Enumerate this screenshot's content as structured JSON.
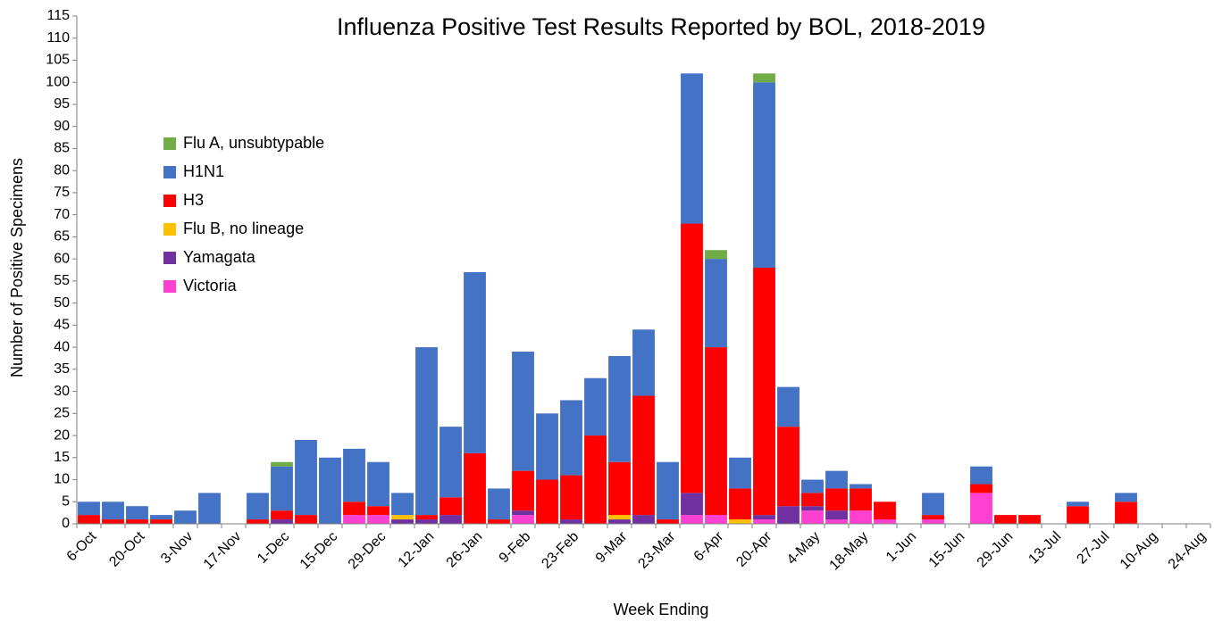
{
  "chart_data": {
    "type": "stacked_bar",
    "title": "Influenza Positive Test Results Reported by BOL, 2018-2019",
    "x_label": "Week Ending",
    "y_label": "Number of Positive Specimens",
    "categories": [
      "6-Oct",
      null,
      "20-Oct",
      null,
      "3-Nov",
      null,
      "17-Nov",
      null,
      "1-Dec",
      null,
      "15-Dec",
      null,
      "29-Dec",
      null,
      "12-Jan",
      null,
      "26-Jan",
      null,
      "9-Feb",
      null,
      "23-Feb",
      null,
      "9-Mar",
      null,
      "23-Mar",
      null,
      "6-Apr",
      null,
      "20-Apr",
      null,
      "4-May",
      null,
      "18-May",
      null,
      "1-Jun",
      null,
      "15-Jun",
      null,
      "29-Jun",
      null,
      "13-Jul",
      null,
      "27-Jul",
      null,
      "10-Aug",
      null,
      "24-Aug"
    ],
    "series": [
      {
        "name": "Flu A, unsubtypable",
        "color": "#70ad47",
        "values": [
          0,
          0,
          0,
          0,
          0,
          0,
          0,
          0,
          1,
          0,
          0,
          0,
          0,
          0,
          0,
          0,
          0,
          0,
          0,
          0,
          0,
          0,
          0,
          0,
          0,
          0,
          2,
          0,
          2,
          0,
          0,
          0,
          0,
          0,
          0,
          0,
          0,
          0,
          0,
          0,
          0,
          0,
          0,
          0,
          0,
          0,
          0
        ]
      },
      {
        "name": "H1N1",
        "color": "#4472c4",
        "values": [
          3,
          4,
          3,
          1,
          3,
          7,
          0,
          6,
          10,
          17,
          15,
          12,
          10,
          5,
          38,
          16,
          41,
          7,
          27,
          15,
          17,
          13,
          24,
          15,
          13,
          34,
          20,
          7,
          42,
          9,
          3,
          4,
          1,
          0,
          0,
          5,
          0,
          4,
          0,
          0,
          0,
          1,
          0,
          2,
          0,
          0,
          0
        ]
      },
      {
        "name": "H3",
        "color": "#ff0000",
        "values": [
          2,
          1,
          1,
          1,
          0,
          0,
          0,
          1,
          2,
          2,
          0,
          3,
          2,
          0,
          1,
          4,
          16,
          1,
          9,
          10,
          10,
          20,
          12,
          27,
          1,
          61,
          38,
          7,
          56,
          18,
          3,
          5,
          5,
          4,
          0,
          1,
          0,
          2,
          2,
          2,
          0,
          4,
          0,
          5,
          0,
          0,
          0
        ]
      },
      {
        "name": "Flu B, no lineage",
        "color": "#ffc000",
        "values": [
          0,
          0,
          0,
          0,
          0,
          0,
          0,
          0,
          0,
          0,
          0,
          0,
          0,
          1,
          0,
          0,
          0,
          0,
          0,
          0,
          0,
          0,
          1,
          0,
          0,
          0,
          0,
          1,
          0,
          0,
          0,
          0,
          0,
          0,
          0,
          0,
          0,
          0,
          0,
          0,
          0,
          0,
          0,
          0,
          0,
          0,
          0
        ]
      },
      {
        "name": "Yamagata",
        "color": "#7030a0",
        "values": [
          0,
          0,
          0,
          0,
          0,
          0,
          0,
          0,
          1,
          0,
          0,
          0,
          0,
          1,
          1,
          2,
          0,
          0,
          1,
          0,
          1,
          0,
          1,
          2,
          0,
          5,
          0,
          0,
          1,
          4,
          1,
          2,
          0,
          0,
          0,
          0,
          0,
          0,
          0,
          0,
          0,
          0,
          0,
          0,
          0,
          0,
          0
        ]
      },
      {
        "name": "Victoria",
        "color": "#ff40d0",
        "values": [
          0,
          0,
          0,
          0,
          0,
          0,
          0,
          0,
          0,
          0,
          0,
          2,
          2,
          0,
          0,
          0,
          0,
          0,
          2,
          0,
          0,
          0,
          0,
          0,
          0,
          2,
          2,
          0,
          1,
          0,
          3,
          1,
          3,
          1,
          0,
          1,
          0,
          7,
          0,
          0,
          0,
          0,
          0,
          0,
          0,
          0,
          0
        ]
      }
    ],
    "ylim": [
      0,
      115
    ],
    "yticks": [
      0,
      5,
      10,
      15,
      20,
      25,
      30,
      35,
      40,
      45,
      50,
      55,
      60,
      65,
      70,
      75,
      80,
      85,
      90,
      95,
      100,
      105,
      110,
      115
    ],
    "legend": "upper left"
  }
}
